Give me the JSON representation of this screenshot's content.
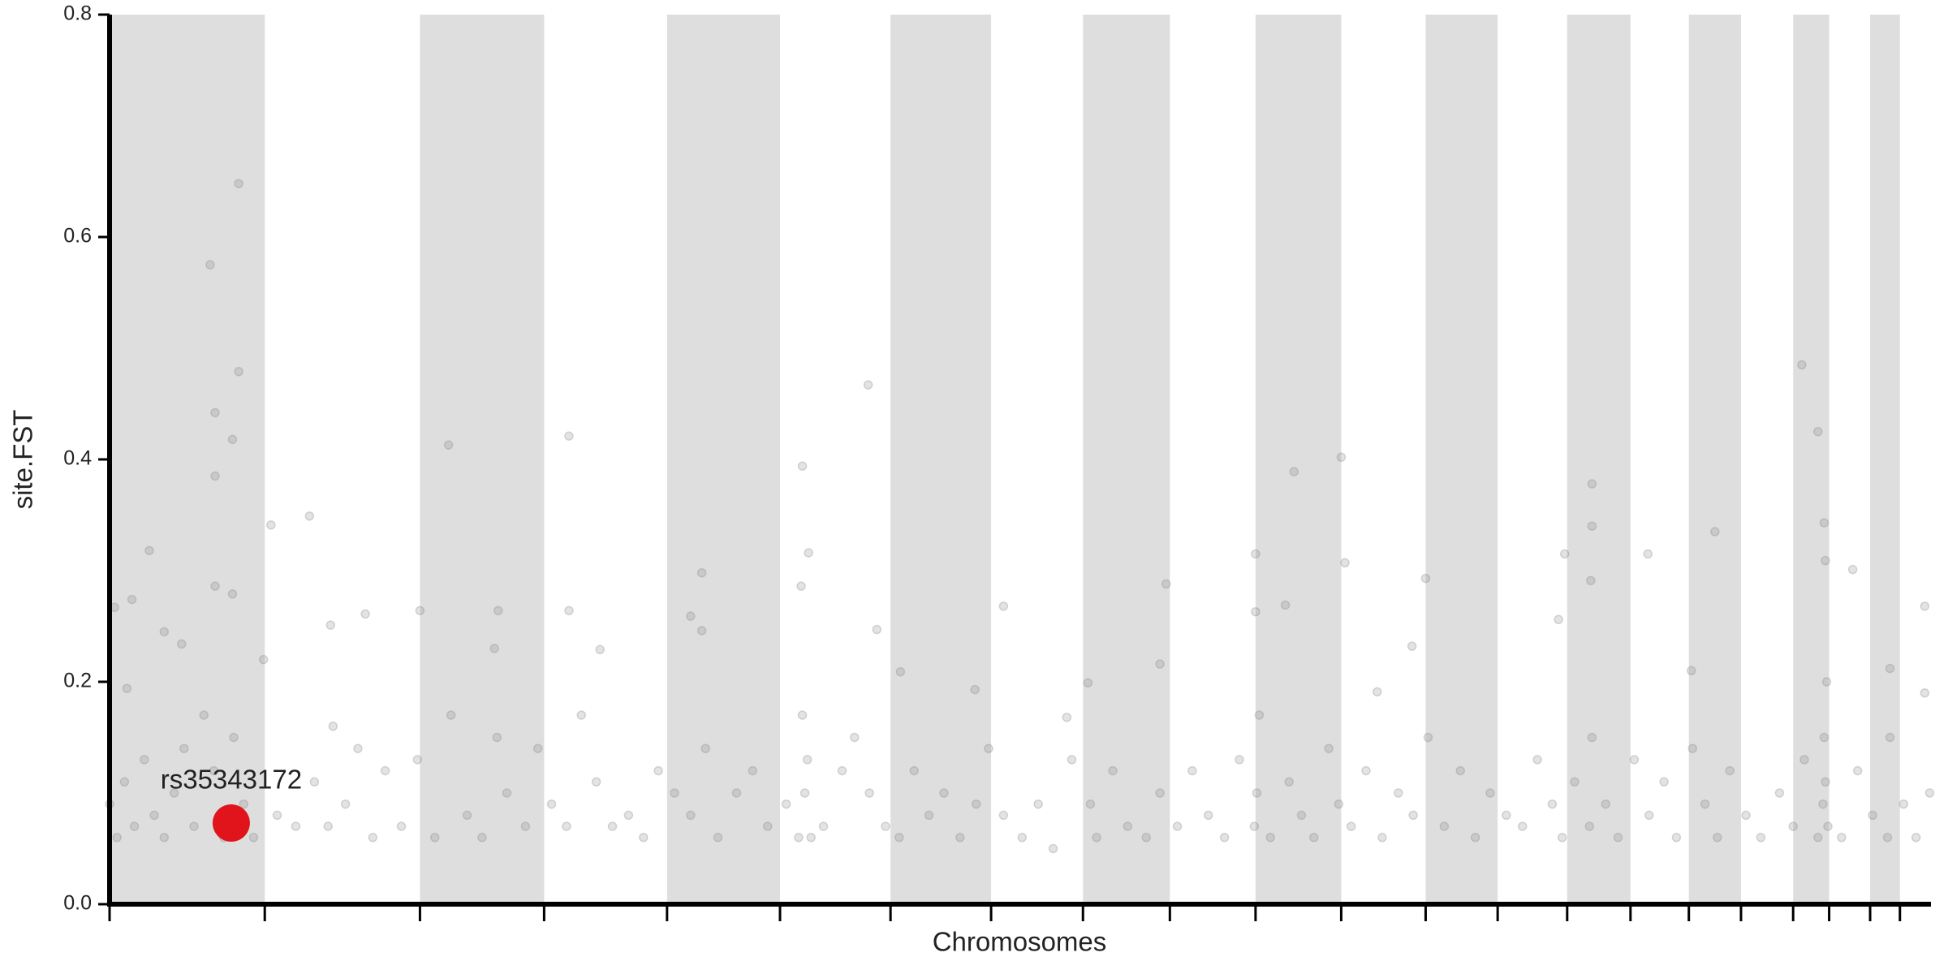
{
  "chart_data": {
    "type": "manhattan",
    "xlabel": "Chromosomes",
    "ylabel": "site.FST",
    "xlim": [
      0,
      1467
    ],
    "xticks": [
      0,
      125,
      250,
      350,
      449,
      540,
      629,
      710,
      784,
      854,
      923,
      992,
      1060,
      1118,
      1174,
      1225,
      1272,
      1314,
      1356,
      1385,
      1418,
      1442
    ],
    "shade_alternate": true,
    "shade_color": "#dedede",
    "ylim": [
      0,
      0.8
    ],
    "yticks": [
      {
        "value": 0,
        "label": "0.0"
      },
      0.2,
      0.4,
      0.6,
      0.8
    ],
    "series": [
      {
        "color": "#808080",
        "x": [
          104,
          81,
          104,
          85,
          99,
          85,
          85,
          99,
          32,
          4,
          18,
          44,
          58,
          14,
          130,
          161,
          273,
          370,
          611,
          558,
          563,
          477,
          178,
          206,
          250,
          313,
          370,
          395,
          468,
          477,
          557,
          618,
          637,
          720,
          851,
          923,
          954,
          992,
          995,
          947,
          1060,
          1194,
          1194,
          1193,
          1172,
          1239,
          1293,
          1363,
          1376,
          1381,
          1404,
          1462,
          1167,
          1382,
          1434,
          1274,
          1049,
          923,
          788,
          846,
          697,
          771,
          1021,
          0,
          6,
          12,
          20,
          28,
          36,
          44,
          52,
          60,
          68,
          76,
          84,
          92,
          100,
          108,
          116,
          124,
          135,
          150,
          165,
          176,
          180,
          190,
          200,
          212,
          222,
          235,
          248,
          262,
          275,
          288,
          300,
          310,
          312,
          320,
          335,
          345,
          356,
          368,
          380,
          392,
          405,
          418,
          430,
          442,
          455,
          468,
          480,
          490,
          505,
          518,
          530,
          545,
          555,
          558,
          560,
          562,
          565,
          575,
          590,
          600,
          612,
          625,
          636,
          648,
          660,
          672,
          685,
          698,
          708,
          720,
          735,
          748,
          760,
          775,
          790,
          795,
          808,
          820,
          835,
          846,
          860,
          872,
          885,
          898,
          910,
          922,
          924,
          926,
          935,
          950,
          960,
          970,
          982,
          990,
          1000,
          1012,
          1025,
          1038,
          1050,
          1062,
          1075,
          1088,
          1100,
          1112,
          1125,
          1138,
          1150,
          1162,
          1170,
          1180,
          1192,
          1194,
          1205,
          1215,
          1228,
          1240,
          1252,
          1262,
          1275,
          1285,
          1295,
          1305,
          1318,
          1330,
          1345,
          1356,
          1365,
          1376,
          1380,
          1381,
          1382,
          1383,
          1384,
          1395,
          1408,
          1420,
          1432,
          1434,
          1445,
          1455,
          1462,
          1466
        ],
        "values": [
          0.648,
          0.575,
          0.479,
          0.442,
          0.418,
          0.385,
          0.286,
          0.279,
          0.318,
          0.267,
          0.274,
          0.245,
          0.234,
          0.194,
          0.341,
          0.349,
          0.413,
          0.421,
          0.467,
          0.394,
          0.316,
          0.298,
          0.251,
          0.261,
          0.264,
          0.264,
          0.264,
          0.229,
          0.259,
          0.246,
          0.286,
          0.247,
          0.209,
          0.268,
          0.288,
          0.315,
          0.389,
          0.402,
          0.307,
          0.269,
          0.293,
          0.378,
          0.34,
          0.291,
          0.315,
          0.315,
          0.335,
          0.485,
          0.425,
          0.343,
          0.301,
          0.268,
          0.256,
          0.309,
          0.212,
          0.21,
          0.232,
          0.263,
          0.199,
          0.216,
          0.193,
          0.168,
          0.191,
          0.09,
          0.06,
          0.11,
          0.07,
          0.13,
          0.08,
          0.06,
          0.1,
          0.14,
          0.07,
          0.17,
          0.12,
          0.06,
          0.15,
          0.09,
          0.06,
          0.22,
          0.08,
          0.07,
          0.11,
          0.07,
          0.16,
          0.09,
          0.14,
          0.06,
          0.12,
          0.07,
          0.13,
          0.06,
          0.17,
          0.08,
          0.06,
          0.23,
          0.15,
          0.1,
          0.07,
          0.14,
          0.09,
          0.07,
          0.17,
          0.11,
          0.07,
          0.08,
          0.06,
          0.12,
          0.1,
          0.08,
          0.14,
          0.06,
          0.1,
          0.12,
          0.07,
          0.09,
          0.06,
          0.17,
          0.1,
          0.13,
          0.06,
          0.07,
          0.12,
          0.15,
          0.1,
          0.07,
          0.06,
          0.12,
          0.08,
          0.1,
          0.06,
          0.09,
          0.14,
          0.08,
          0.06,
          0.09,
          0.05,
          0.13,
          0.09,
          0.06,
          0.12,
          0.07,
          0.06,
          0.1,
          0.07,
          0.12,
          0.08,
          0.06,
          0.13,
          0.07,
          0.1,
          0.17,
          0.06,
          0.11,
          0.08,
          0.06,
          0.14,
          0.09,
          0.07,
          0.12,
          0.06,
          0.1,
          0.08,
          0.15,
          0.07,
          0.12,
          0.06,
          0.1,
          0.08,
          0.07,
          0.13,
          0.09,
          0.06,
          0.11,
          0.07,
          0.15,
          0.09,
          0.06,
          0.13,
          0.08,
          0.11,
          0.06,
          0.14,
          0.09,
          0.06,
          0.12,
          0.08,
          0.06,
          0.1,
          0.07,
          0.13,
          0.06,
          0.09,
          0.15,
          0.11,
          0.2,
          0.07,
          0.06,
          0.12,
          0.08,
          0.06,
          0.15,
          0.09,
          0.06,
          0.19,
          0.1
        ]
      }
    ],
    "highlight": {
      "label": "rs35343172",
      "x": 98,
      "y": 0.073,
      "color": "#e0141a"
    }
  }
}
